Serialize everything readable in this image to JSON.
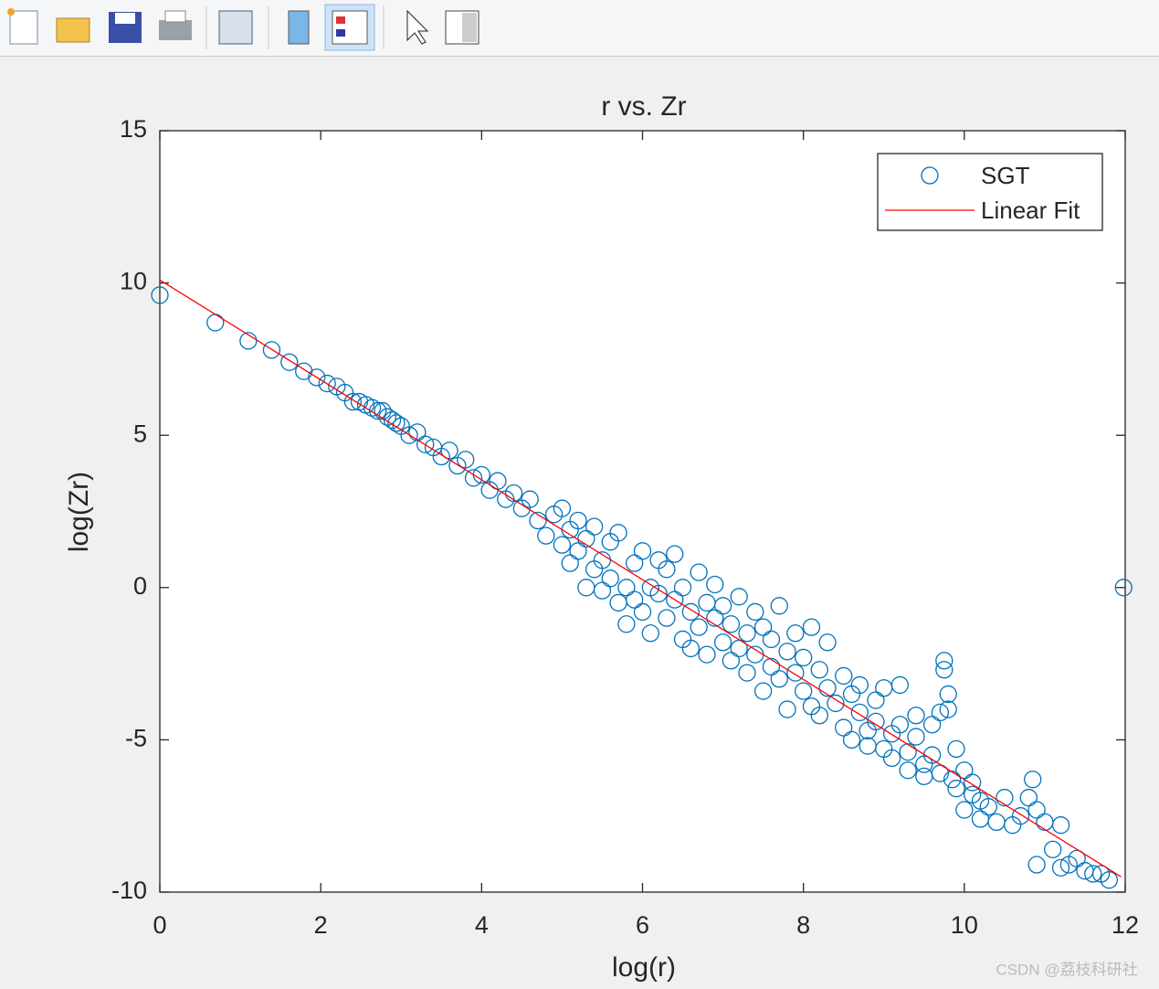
{
  "chart_data": {
    "type": "scatter",
    "title": "r vs. Zr",
    "x_label": "log(r)",
    "y_label": "log(Zr)",
    "xlim": [
      0,
      12
    ],
    "xticks": [
      0,
      2,
      4,
      6,
      8,
      10,
      12
    ],
    "ylim": [
      -10,
      15
    ],
    "yticks": [
      -10,
      -5,
      0,
      5,
      10,
      15
    ],
    "legend": "upper right",
    "box": true,
    "series": [
      {
        "name": "SGT",
        "color": "#0072bd",
        "marker": "circle",
        "x": [
          0,
          0.69,
          1.1,
          1.39,
          1.61,
          1.79,
          1.95,
          2.08,
          2.2,
          2.3,
          2.4,
          2.48,
          2.56,
          2.64,
          2.71,
          2.77,
          2.83,
          2.89,
          2.94,
          3.0,
          3.1,
          3.2,
          3.3,
          3.4,
          3.5,
          3.6,
          3.7,
          3.8,
          3.9,
          4.0,
          4.1,
          4.2,
          4.3,
          4.4,
          4.5,
          4.6,
          4.7,
          4.8,
          4.9,
          5.0,
          5.0,
          5.1,
          5.1,
          5.2,
          5.2,
          5.3,
          5.3,
          5.4,
          5.4,
          5.5,
          5.5,
          5.6,
          5.6,
          5.7,
          5.7,
          5.8,
          5.8,
          5.9,
          5.9,
          6.0,
          6.0,
          6.1,
          6.1,
          6.2,
          6.2,
          6.3,
          6.3,
          6.4,
          6.4,
          6.5,
          6.5,
          6.6,
          6.6,
          6.7,
          6.7,
          6.8,
          6.8,
          6.9,
          6.9,
          7.0,
          7.0,
          7.1,
          7.1,
          7.2,
          7.2,
          7.3,
          7.3,
          7.4,
          7.4,
          7.5,
          7.5,
          7.6,
          7.6,
          7.7,
          7.7,
          7.8,
          7.8,
          7.9,
          7.9,
          8.0,
          8.0,
          8.1,
          8.1,
          8.2,
          8.2,
          8.3,
          8.3,
          8.4,
          8.5,
          8.5,
          8.6,
          8.6,
          8.7,
          8.7,
          8.8,
          8.8,
          8.9,
          8.9,
          9.0,
          9.0,
          9.1,
          9.1,
          9.2,
          9.2,
          9.3,
          9.3,
          9.4,
          9.4,
          9.5,
          9.5,
          9.6,
          9.6,
          9.7,
          9.7,
          9.75,
          9.75,
          9.8,
          9.8,
          9.85,
          9.9,
          9.9,
          10.0,
          10.0,
          10.1,
          10.1,
          10.2,
          10.2,
          10.3,
          10.4,
          10.5,
          10.6,
          10.7,
          10.8,
          10.85,
          10.9,
          10.9,
          11.0,
          11.1,
          11.2,
          11.2,
          11.3,
          11.4,
          11.5,
          11.6,
          11.7,
          11.8,
          11.98
        ],
        "y": [
          9.6,
          8.7,
          8.1,
          7.8,
          7.4,
          7.1,
          6.9,
          6.7,
          6.6,
          6.4,
          6.1,
          6.1,
          6.0,
          5.9,
          5.8,
          5.8,
          5.6,
          5.5,
          5.4,
          5.3,
          5.0,
          5.1,
          4.7,
          4.6,
          4.3,
          4.5,
          4.0,
          4.2,
          3.6,
          3.7,
          3.2,
          3.5,
          2.9,
          3.1,
          2.6,
          2.9,
          2.2,
          1.7,
          2.4,
          1.4,
          2.6,
          1.9,
          0.8,
          1.2,
          2.2,
          0.0,
          1.6,
          0.6,
          2.0,
          0.9,
          -0.1,
          1.5,
          0.3,
          -0.5,
          1.8,
          0.0,
          -1.2,
          0.8,
          -0.4,
          1.2,
          -0.8,
          0.0,
          -1.5,
          0.9,
          -0.2,
          -1.0,
          0.6,
          -0.4,
          1.1,
          -1.7,
          0.0,
          -0.8,
          -2.0,
          0.5,
          -1.3,
          -0.5,
          -2.2,
          -1.0,
          0.1,
          -1.8,
          -0.6,
          -2.4,
          -1.2,
          -0.3,
          -2.0,
          -1.5,
          -2.8,
          -0.8,
          -2.2,
          -1.3,
          -3.4,
          -2.6,
          -1.7,
          -3.0,
          -0.6,
          -2.1,
          -4.0,
          -2.8,
          -1.5,
          -3.4,
          -2.3,
          -3.9,
          -1.3,
          -2.7,
          -4.2,
          -3.3,
          -1.8,
          -3.8,
          -2.9,
          -4.6,
          -3.5,
          -5.0,
          -4.1,
          -3.2,
          -4.7,
          -5.2,
          -3.7,
          -4.4,
          -5.3,
          -3.3,
          -4.8,
          -5.6,
          -3.2,
          -4.5,
          -5.4,
          -6.0,
          -4.9,
          -4.2,
          -5.8,
          -6.2,
          -4.5,
          -5.5,
          -6.1,
          -4.1,
          -2.4,
          -2.7,
          -3.5,
          -4.0,
          -6.3,
          -5.3,
          -6.6,
          -6.0,
          -7.3,
          -6.4,
          -6.8,
          -7.0,
          -7.6,
          -7.2,
          -7.7,
          -6.9,
          -7.8,
          -7.5,
          -6.9,
          -6.3,
          -7.3,
          -9.1,
          -7.7,
          -8.6,
          -9.2,
          -7.8,
          -9.1,
          -8.9,
          -9.3,
          -9.4,
          -9.4,
          -9.6,
          0
        ]
      },
      {
        "name": "Linear Fit",
        "color": "#ff0000",
        "marker": "line",
        "x": [
          0,
          11.95
        ],
        "y": [
          10.1,
          -9.5
        ]
      }
    ]
  },
  "watermark": "CSDN @荔枝科研社"
}
